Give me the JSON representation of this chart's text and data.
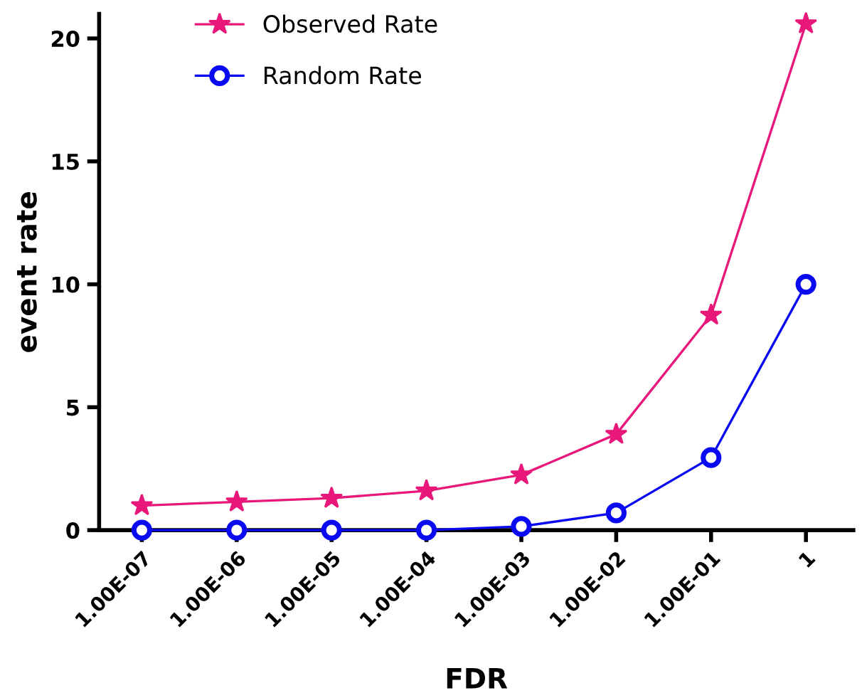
{
  "chart_data": {
    "type": "line",
    "xlabel": "FDR",
    "ylabel": "event rate",
    "categories": [
      "1.00E-07",
      "1.00E-06",
      "1.00E-05",
      "1.00E-04",
      "1.00E-03",
      "1.00E-02",
      "1.00E-01",
      "1"
    ],
    "series": [
      {
        "name": "Observed Rate",
        "color": "#e8187a",
        "marker": "star",
        "values": [
          1.0,
          1.15,
          1.3,
          1.6,
          2.25,
          3.9,
          8.75,
          20.6
        ]
      },
      {
        "name": "Random Rate",
        "color": "#0a0af0",
        "marker": "circle",
        "values": [
          0,
          0,
          0,
          0,
          0.15,
          0.7,
          2.95,
          10.0
        ]
      }
    ],
    "ylim": [
      0,
      21
    ],
    "yticks": [
      0,
      5,
      10,
      15,
      20
    ],
    "grid": false,
    "legend": "top left",
    "line_style": "solid"
  }
}
